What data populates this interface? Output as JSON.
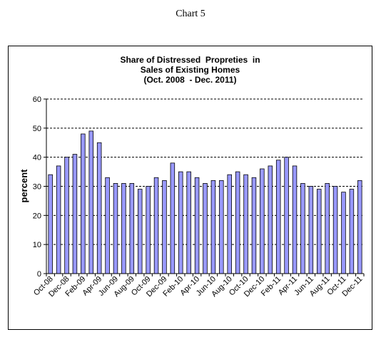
{
  "caption": "Chart 5",
  "chart_data": {
    "type": "bar",
    "title_lines": [
      "Share of Distressed  Propreties  in",
      "Sales of Existing Homes",
      "(Oct. 2008  - Dec. 2011)"
    ],
    "xlabel": "",
    "ylabel": "percent",
    "ylim": [
      0,
      60
    ],
    "yticks": [
      0,
      10,
      20,
      30,
      40,
      50,
      60
    ],
    "grid": true,
    "bar_color": "#9999ff",
    "categories": [
      "Oct-08",
      "Nov-08",
      "Dec-08",
      "Jan-09",
      "Feb-09",
      "Mar-09",
      "Apr-09",
      "May-09",
      "Jun-09",
      "Jul-09",
      "Aug-09",
      "Sep-09",
      "Oct-09",
      "Nov-09",
      "Dec-09",
      "Jan-10",
      "Feb-10",
      "Mar-10",
      "Apr-10",
      "May-10",
      "Jun-10",
      "Jul-10",
      "Aug-10",
      "Sep-10",
      "Oct-10",
      "Nov-10",
      "Dec-10",
      "Jan-11",
      "Feb-11",
      "Mar-11",
      "Apr-11",
      "May-11",
      "Jun-11",
      "Jul-11",
      "Aug-11",
      "Sep-11",
      "Oct-11",
      "Nov-11",
      "Dec-11"
    ],
    "tick_labels": [
      "Oct-08",
      "Dec-08",
      "Feb-09",
      "Apr-09",
      "Jun-09",
      "Aug-09",
      "Oct-09",
      "Dec-09",
      "Feb-10",
      "Apr-10",
      "Jun-10",
      "Aug-10",
      "Oct-10",
      "Dec-10",
      "Feb-11",
      "Apr-11",
      "Jun-11",
      "Aug-11",
      "Oct-11",
      "Dec-11"
    ],
    "values": [
      34,
      37,
      40,
      41,
      48,
      49,
      45,
      33,
      31,
      31,
      31,
      29,
      30,
      33,
      32,
      38,
      35,
      35,
      33,
      31,
      32,
      32,
      34,
      35,
      34,
      33,
      36,
      37,
      39,
      40,
      37,
      31,
      30,
      29,
      31,
      30,
      28,
      29,
      32
    ]
  }
}
